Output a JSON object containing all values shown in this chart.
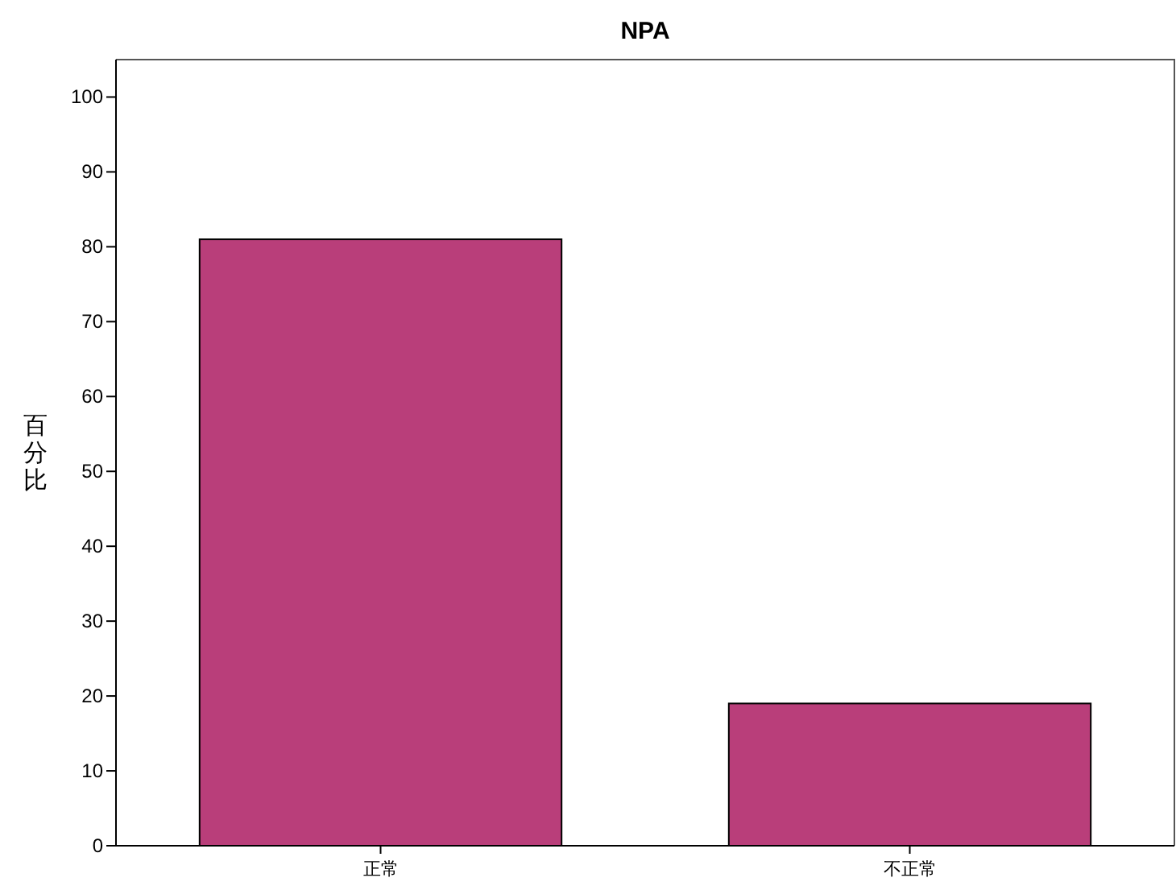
{
  "chart_data": {
    "type": "bar",
    "title": "NPA",
    "ylabel": "百分比",
    "categories": [
      "正常",
      "不正常"
    ],
    "values": [
      81,
      19
    ],
    "color": "#b93e7a",
    "ylim": [
      0,
      105
    ],
    "yticks": [
      0,
      10,
      20,
      30,
      40,
      50,
      60,
      70,
      80,
      90,
      100
    ],
    "grid": false
  }
}
